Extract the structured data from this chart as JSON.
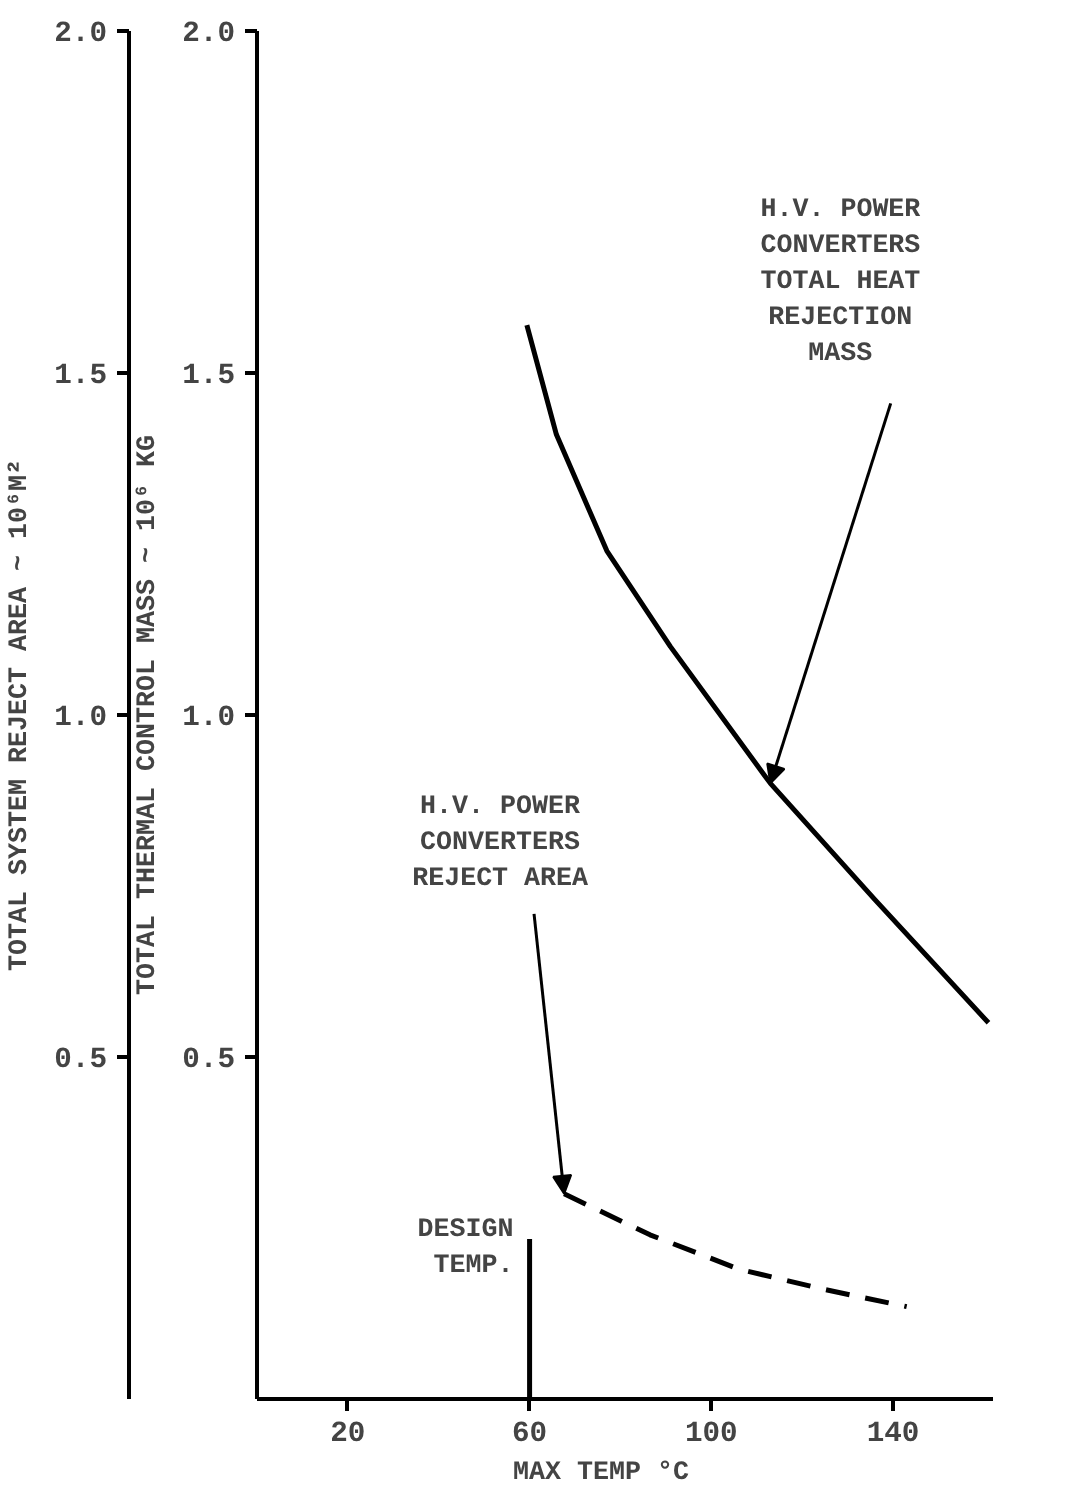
{
  "chart_data": {
    "type": "line",
    "xlabel": "MAX TEMP    °C",
    "ylabel": "TOTAL SYSTEM REJECT AREA ~ 10⁶M²",
    "y2label": "TOTAL THERMAL CONTROL MASS ~ 10⁶ KG",
    "ref_lines": [
      {
        "axis": "x",
        "value": 60,
        "label": "DESIGN\nTEMP."
      }
    ],
    "xlim": [
      0,
      162
    ],
    "xticks": [
      20,
      60,
      100,
      140
    ],
    "ylim": [
      0,
      2.0
    ],
    "yticks": [
      {
        "value": 0.5,
        "label": "0.5"
      },
      {
        "value": 1.0,
        "label": "1.0"
      },
      {
        "value": 1.5,
        "label": "1.5"
      },
      {
        "value": 2.0,
        "label": "2.0"
      }
    ],
    "y2lim": [
      0,
      2.0
    ],
    "y2ticks": [
      {
        "value": 0.5,
        "label": "0.5"
      },
      {
        "value": 1.0,
        "label": "1.0"
      },
      {
        "value": 1.5,
        "label": "1.5"
      },
      {
        "value": 2.0,
        "label": "2.0"
      }
    ],
    "grid": false,
    "series": [
      {
        "color": "#000000",
        "line_style": "solid",
        "x": [
          59.4,
          65.9,
          77,
          91,
          113,
          136,
          161
        ],
        "values": [
          1.57,
          1.41,
          1.24,
          1.1,
          0.9,
          0.73,
          0.55
        ]
      },
      {
        "color": "#000000",
        "line_style": "dashed",
        "x": [
          67.6,
          86.5,
          106,
          125,
          143
        ],
        "values": [
          0.3,
          0.24,
          0.19,
          0.16,
          0.135
        ]
      }
    ],
    "annotations": [
      {
        "text": "H.V. POWER\nCONVERTERS\nTOTAL HEAT\nREJECTION\nMASS",
        "x": 113,
        "y": 0.9
      },
      {
        "text": "H.V. POWER\nCONVERTERS\nREJECT AREA",
        "x": 67.6,
        "y": 0.3
      }
    ]
  }
}
